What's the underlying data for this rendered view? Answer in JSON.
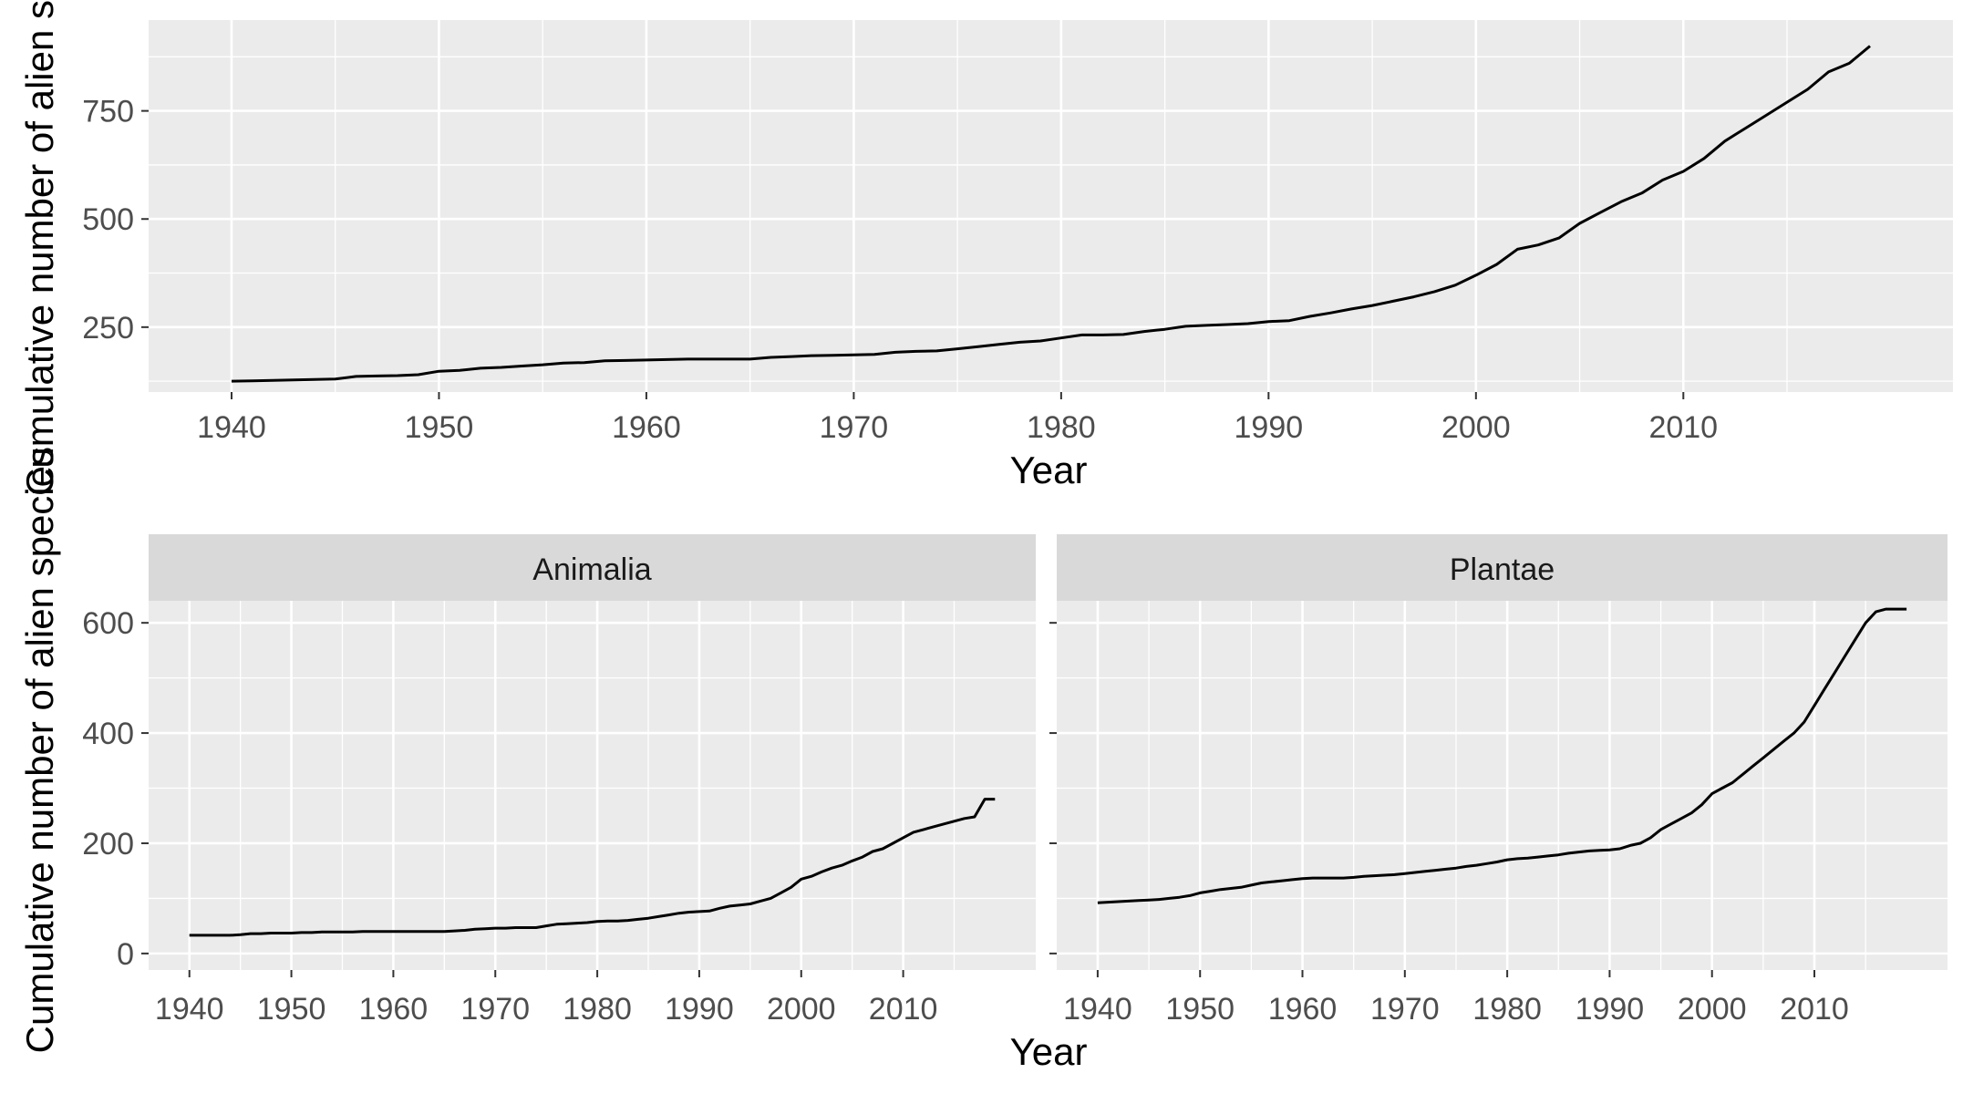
{
  "chart_data": [
    {
      "type": "line",
      "panel": "all",
      "title": "",
      "xlabel": "Year",
      "ylabel": "Cumulative number of alien species",
      "xlim": [
        1936,
        2023
      ],
      "ylim": [
        100,
        960
      ],
      "x_ticks": [
        1940,
        1950,
        1960,
        1970,
        1980,
        1990,
        2000,
        2010
      ],
      "y_ticks": [
        250,
        500,
        750
      ],
      "grid": true,
      "series": [
        {
          "x": [
            1940,
            1941,
            1942,
            1943,
            1944,
            1945,
            1946,
            1947,
            1948,
            1949,
            1950,
            1951,
            1952,
            1953,
            1954,
            1955,
            1956,
            1957,
            1958,
            1959,
            1960,
            1961,
            1962,
            1963,
            1964,
            1965,
            1966,
            1967,
            1968,
            1969,
            1970,
            1971,
            1972,
            1973,
            1974,
            1975,
            1976,
            1977,
            1978,
            1979,
            1980,
            1981,
            1982,
            1983,
            1984,
            1985,
            1986,
            1987,
            1988,
            1989,
            1990,
            1991,
            1992,
            1993,
            1994,
            1995,
            1996,
            1997,
            1998,
            1999,
            2000,
            2001,
            2002,
            2003,
            2004,
            2005,
            2006,
            2007,
            2008,
            2009,
            2010,
            2011,
            2012,
            2013,
            2014,
            2015,
            2016,
            2017,
            2018,
            2019
          ],
          "y": [
            125,
            126,
            127,
            128,
            129,
            130,
            136,
            137,
            138,
            140,
            148,
            150,
            155,
            157,
            160,
            163,
            167,
            168,
            172,
            173,
            174,
            175,
            176,
            176,
            176,
            176,
            180,
            182,
            184,
            185,
            186,
            187,
            192,
            194,
            195,
            200,
            205,
            210,
            215,
            218,
            225,
            232,
            232,
            233,
            240,
            245,
            252,
            254,
            256,
            258,
            263,
            265,
            275,
            283,
            292,
            300,
            310,
            320,
            332,
            347,
            370,
            395,
            430,
            440,
            456,
            490,
            515,
            540,
            560,
            590,
            610,
            640,
            680,
            710,
            740,
            770,
            800,
            840,
            860,
            900
          ]
        }
      ]
    },
    {
      "type": "line",
      "panel": "Animalia",
      "title": "Animalia",
      "xlabel": "Year",
      "ylabel": "Cumulative number of alien species",
      "xlim": [
        1936,
        2023
      ],
      "ylim": [
        -30,
        640
      ],
      "x_ticks": [
        1940,
        1950,
        1960,
        1970,
        1980,
        1990,
        2000,
        2010
      ],
      "y_ticks": [
        0,
        200,
        400,
        600
      ],
      "grid": true,
      "series": [
        {
          "x": [
            1940,
            1941,
            1942,
            1943,
            1944,
            1945,
            1946,
            1947,
            1948,
            1949,
            1950,
            1951,
            1952,
            1953,
            1954,
            1955,
            1956,
            1957,
            1958,
            1959,
            1960,
            1961,
            1962,
            1963,
            1964,
            1965,
            1966,
            1967,
            1968,
            1969,
            1970,
            1971,
            1972,
            1973,
            1974,
            1975,
            1976,
            1977,
            1978,
            1979,
            1980,
            1981,
            1982,
            1983,
            1984,
            1985,
            1986,
            1987,
            1988,
            1989,
            1990,
            1991,
            1992,
            1993,
            1994,
            1995,
            1996,
            1997,
            1998,
            1999,
            2000,
            2001,
            2002,
            2003,
            2004,
            2005,
            2006,
            2007,
            2008,
            2009,
            2010,
            2011,
            2012,
            2013,
            2014,
            2015,
            2016,
            2017,
            2018,
            2019
          ],
          "y": [
            33,
            33,
            33,
            33,
            33,
            34,
            36,
            36,
            37,
            37,
            37,
            38,
            38,
            39,
            39,
            39,
            39,
            40,
            40,
            40,
            40,
            40,
            40,
            40,
            40,
            40,
            41,
            42,
            44,
            45,
            46,
            46,
            47,
            47,
            47,
            50,
            53,
            54,
            55,
            56,
            58,
            59,
            59,
            60,
            62,
            64,
            67,
            70,
            73,
            75,
            76,
            77,
            82,
            86,
            88,
            90,
            95,
            100,
            110,
            120,
            135,
            140,
            148,
            155,
            160,
            168,
            175,
            185,
            190,
            200,
            210,
            220,
            225,
            230,
            235,
            240,
            245,
            248,
            280,
            280
          ]
        }
      ]
    },
    {
      "type": "line",
      "panel": "Plantae",
      "title": "Plantae",
      "xlabel": "Year",
      "ylabel": "",
      "xlim": [
        1936,
        2023
      ],
      "ylim": [
        -30,
        640
      ],
      "x_ticks": [
        1940,
        1950,
        1960,
        1970,
        1980,
        1990,
        2000,
        2010
      ],
      "y_ticks": [
        0,
        200,
        400,
        600
      ],
      "grid": true,
      "series": [
        {
          "x": [
            1940,
            1941,
            1942,
            1943,
            1944,
            1945,
            1946,
            1947,
            1948,
            1949,
            1950,
            1951,
            1952,
            1953,
            1954,
            1955,
            1956,
            1957,
            1958,
            1959,
            1960,
            1961,
            1962,
            1963,
            1964,
            1965,
            1966,
            1967,
            1968,
            1969,
            1970,
            1971,
            1972,
            1973,
            1974,
            1975,
            1976,
            1977,
            1978,
            1979,
            1980,
            1981,
            1982,
            1983,
            1984,
            1985,
            1986,
            1987,
            1988,
            1989,
            1990,
            1991,
            1992,
            1993,
            1994,
            1995,
            1996,
            1997,
            1998,
            1999,
            2000,
            2001,
            2002,
            2003,
            2004,
            2005,
            2006,
            2007,
            2008,
            2009,
            2010,
            2011,
            2012,
            2013,
            2014,
            2015,
            2016,
            2017,
            2018,
            2019
          ],
          "y": [
            92,
            93,
            94,
            95,
            96,
            97,
            98,
            100,
            102,
            105,
            110,
            113,
            116,
            118,
            120,
            124,
            128,
            130,
            132,
            134,
            136,
            137,
            137,
            137,
            137,
            138,
            140,
            141,
            142,
            143,
            145,
            147,
            149,
            151,
            153,
            155,
            158,
            160,
            163,
            166,
            170,
            172,
            173,
            175,
            177,
            179,
            182,
            184,
            186,
            187,
            188,
            190,
            196,
            200,
            210,
            225,
            235,
            245,
            255,
            270,
            290,
            300,
            310,
            325,
            340,
            355,
            370,
            385,
            400,
            420,
            450,
            480,
            510,
            540,
            570,
            600,
            620,
            625,
            625,
            625
          ]
        }
      ]
    }
  ],
  "labels": {
    "top_xlabel": "Year",
    "bottom_xlabel": "Year",
    "ylabel_top": "Cumulative number of alien s",
    "ylabel_bottom": "Cumulative number of alien species",
    "strip_left": "Animalia",
    "strip_right": "Plantae"
  },
  "colors": {
    "panel_background": "#ebebeb",
    "grid_major": "#ffffff",
    "strip_background": "#d9d9d9",
    "line": "#000000",
    "tick_label": "#4d4d4d"
  }
}
